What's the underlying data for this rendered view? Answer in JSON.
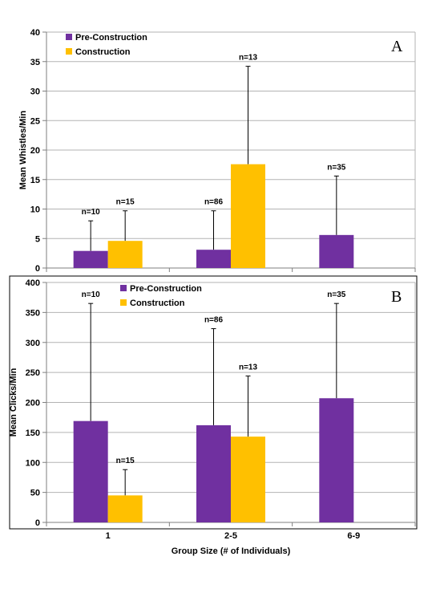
{
  "colors": {
    "pre_construction": "#7030a0",
    "construction": "#ffc000",
    "gridline": "#b3b3b3",
    "axis": "#7f7f7f"
  },
  "chart_data": [
    {
      "type": "bar",
      "panel": "A",
      "categories": [
        "1",
        "2-5",
        "6-9"
      ],
      "ylabel": "Mean Whistles/Min",
      "ylim": [
        0,
        40
      ],
      "yticks": [
        0,
        5,
        10,
        15,
        20,
        25,
        30,
        35,
        40
      ],
      "grid": true,
      "legend_position": "top-left",
      "series": [
        {
          "name": "Pre-Construction",
          "values": [
            2.9,
            3.1,
            5.6
          ],
          "error_upper": [
            8.0,
            9.7,
            15.6
          ],
          "n_labels": [
            "n=10",
            "n=86",
            "n=35"
          ]
        },
        {
          "name": "Construction",
          "values": [
            4.6,
            17.6,
            null
          ],
          "error_upper": [
            9.7,
            34.2,
            null
          ],
          "n_labels": [
            "n=15",
            "n=13",
            null
          ]
        }
      ]
    },
    {
      "type": "bar",
      "panel": "B",
      "categories": [
        "1",
        "2-5",
        "6-9"
      ],
      "xlabel": "Group Size (# of Individuals)",
      "ylabel": "Mean Clicks/Min",
      "ylim": [
        0,
        400
      ],
      "yticks": [
        0,
        50,
        100,
        150,
        200,
        250,
        300,
        350,
        400
      ],
      "grid": true,
      "legend_position": "top-center",
      "series": [
        {
          "name": "Pre-Construction",
          "values": [
            169,
            162,
            207
          ],
          "error_upper": [
            365,
            323,
            365
          ],
          "n_labels": [
            "n=10",
            "n=86",
            "n=35"
          ]
        },
        {
          "name": "Construction",
          "values": [
            45,
            143,
            null
          ],
          "error_upper": [
            88,
            244,
            null
          ],
          "n_labels": [
            "n=15",
            "n=13",
            null
          ]
        }
      ]
    }
  ]
}
